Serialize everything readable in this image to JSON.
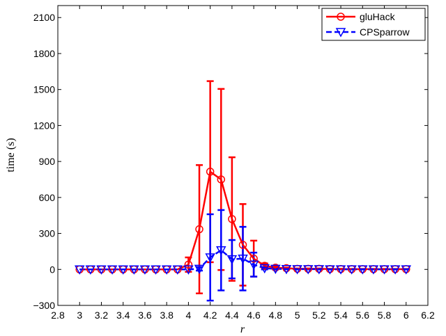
{
  "chart_data": {
    "type": "line",
    "title": "",
    "xlabel": "r",
    "ylabel": "time (s)",
    "xlim": [
      2.8,
      6.2
    ],
    "ylim": [
      -300,
      2200
    ],
    "xticks": [
      "2.8",
      "3",
      "3.2",
      "3.4",
      "3.6",
      "3.8",
      "4",
      "4.2",
      "4.4",
      "4.6",
      "4.8",
      "5",
      "5.2",
      "5.4",
      "5.6",
      "5.8",
      "6",
      "6.2"
    ],
    "xtick_values": [
      2.8,
      3,
      3.2,
      3.4,
      3.6,
      3.8,
      4,
      4.2,
      4.4,
      4.6,
      4.8,
      5,
      5.2,
      5.4,
      5.6,
      5.8,
      6,
      6.2
    ],
    "yticks": [
      "−300",
      "0",
      "300",
      "600",
      "900",
      "1200",
      "1500",
      "1800",
      "2100"
    ],
    "ytick_values": [
      -300,
      0,
      300,
      600,
      900,
      1200,
      1500,
      1800,
      2100
    ],
    "grid": false,
    "legend_position": "top-right",
    "x": [
      3.0,
      3.1,
      3.2,
      3.3,
      3.4,
      3.5,
      3.6,
      3.7,
      3.8,
      3.9,
      4.0,
      4.1,
      4.2,
      4.3,
      4.4,
      4.5,
      4.6,
      4.7,
      4.8,
      4.9,
      5.0,
      5.1,
      5.2,
      5.3,
      5.4,
      5.5,
      5.6,
      5.7,
      5.8,
      5.9,
      6.0
    ],
    "series": [
      {
        "name": "gluHack",
        "color": "#ff0000",
        "marker": "circle",
        "line_style": "solid",
        "values": [
          0,
          0,
          0,
          0,
          0,
          0,
          0,
          0,
          0,
          0,
          40,
          335,
          815,
          750,
          420,
          205,
          90,
          30,
          15,
          10,
          5,
          5,
          5,
          3,
          3,
          2,
          2,
          2,
          2,
          2,
          2
        ],
        "err": [
          0,
          0,
          0,
          0,
          0,
          0,
          0,
          0,
          0,
          0,
          60,
          535,
          755,
          755,
          515,
          340,
          150,
          20,
          10,
          5,
          3,
          3,
          3,
          2,
          2,
          2,
          2,
          2,
          2,
          2,
          2
        ]
      },
      {
        "name": "CPSparrow",
        "color": "#0000ff",
        "marker": "triangle-down",
        "line_style": "dashed",
        "values": [
          0,
          0,
          0,
          0,
          0,
          0,
          0,
          0,
          0,
          0,
          0,
          5,
          100,
          160,
          85,
          90,
          40,
          10,
          5,
          3,
          2,
          2,
          2,
          1,
          1,
          1,
          1,
          1,
          1,
          1,
          1
        ],
        "err": [
          0,
          0,
          0,
          0,
          0,
          0,
          0,
          0,
          0,
          0,
          0,
          15,
          360,
          335,
          160,
          265,
          100,
          10,
          5,
          2,
          2,
          2,
          2,
          1,
          1,
          1,
          1,
          1,
          1,
          1,
          1
        ]
      }
    ]
  }
}
